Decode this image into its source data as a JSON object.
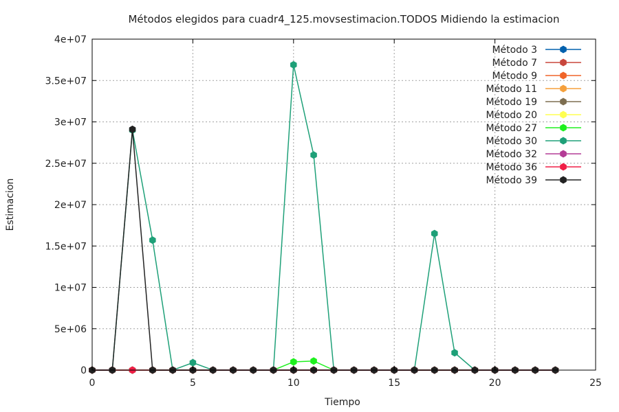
{
  "chart_data": {
    "type": "line",
    "title": "Métodos elegidos para cuadr4_125.movsestimacion.TODOS Midiendo la estimacion",
    "xlabel": "Tiempo",
    "ylabel": "Estimacion",
    "xlim": [
      0,
      25
    ],
    "ylim": [
      0,
      40000000
    ],
    "xticks": [
      0,
      5,
      10,
      15,
      20,
      25
    ],
    "xtick_labels": [
      "0",
      "5",
      "10",
      "15",
      "20",
      "25"
    ],
    "yticks": [
      0,
      5000000,
      10000000,
      15000000,
      20000000,
      25000000,
      30000000,
      35000000,
      40000000
    ],
    "ytick_labels": [
      "0",
      "5e+06",
      "1e+07",
      "1.5e+07",
      "2e+07",
      "2.5e+07",
      "3e+07",
      "3.5e+07",
      "4e+07"
    ],
    "grid": true,
    "legend_position": "top-right",
    "x": [
      0,
      1,
      2,
      3,
      4,
      5,
      6,
      7,
      8,
      9,
      10,
      11,
      12,
      13,
      14,
      15,
      16,
      17,
      18,
      19,
      20,
      21,
      22,
      23
    ],
    "series": [
      {
        "name": "Método 3",
        "color": "#0060ad",
        "values": [
          0,
          0,
          0,
          0,
          0,
          0,
          0,
          0,
          0,
          0,
          0,
          0,
          0,
          0,
          0,
          0,
          0,
          0,
          0,
          0,
          0,
          0,
          0,
          0
        ]
      },
      {
        "name": "Método 7",
        "color": "#c8463c",
        "values": [
          0,
          0,
          0,
          0,
          0,
          0,
          0,
          0,
          0,
          0,
          0,
          0,
          0,
          0,
          0,
          0,
          0,
          0,
          0,
          0,
          0,
          0,
          0,
          0
        ]
      },
      {
        "name": "Método 9",
        "color": "#f06428",
        "values": [
          0,
          0,
          0,
          0,
          0,
          0,
          0,
          0,
          0,
          0,
          0,
          0,
          0,
          0,
          0,
          0,
          0,
          0,
          0,
          0,
          0,
          0,
          0,
          0
        ]
      },
      {
        "name": "Método 11",
        "color": "#f5a03c",
        "values": [
          0,
          0,
          0,
          0,
          0,
          0,
          0,
          0,
          0,
          0,
          0,
          0,
          0,
          0,
          0,
          0,
          0,
          0,
          0,
          0,
          0,
          0,
          0,
          0
        ]
      },
      {
        "name": "Método 19",
        "color": "#7d6e50",
        "values": [
          0,
          0,
          0,
          0,
          0,
          0,
          0,
          0,
          0,
          0,
          0,
          0,
          0,
          0,
          0,
          0,
          0,
          0,
          0,
          0,
          0,
          0,
          0,
          0
        ]
      },
      {
        "name": "Método 20",
        "color": "#ffff50",
        "values": [
          0,
          0,
          0,
          0,
          0,
          0,
          0,
          0,
          0,
          0,
          0,
          0,
          0,
          0,
          0,
          0,
          0,
          0,
          0,
          0,
          0,
          0,
          0,
          0
        ]
      },
      {
        "name": "Método 27",
        "color": "#1ef01e",
        "values": [
          0,
          0,
          0,
          0,
          0,
          0,
          0,
          0,
          0,
          0,
          1000000,
          1100000,
          0,
          0,
          0,
          0,
          0,
          0,
          0,
          0,
          0,
          0,
          0,
          0
        ]
      },
      {
        "name": "Método 30",
        "color": "#1ea078",
        "values": [
          0,
          0,
          29000000,
          15700000,
          0,
          900000,
          0,
          0,
          0,
          0,
          36900000,
          26000000,
          0,
          0,
          0,
          0,
          0,
          16500000,
          2100000,
          0,
          0,
          0,
          0,
          0
        ]
      },
      {
        "name": "Método 32",
        "color": "#b43c96",
        "values": [
          0,
          0,
          0,
          0,
          0,
          0,
          0,
          0,
          0,
          0,
          0,
          0,
          0,
          0,
          0,
          0,
          0,
          0,
          0,
          0,
          0,
          0,
          0,
          0
        ]
      },
      {
        "name": "Método 36",
        "color": "#f01e46",
        "values": [
          0,
          0,
          0,
          0,
          0,
          0,
          0,
          0,
          0,
          0,
          0,
          0,
          0,
          0,
          0,
          0,
          0,
          0,
          0,
          0,
          0,
          0,
          0,
          0
        ]
      },
      {
        "name": "Método 39",
        "color": "#222222",
        "values": [
          0,
          0,
          29100000,
          0,
          0,
          0,
          0,
          0,
          0,
          0,
          0,
          0,
          0,
          0,
          0,
          0,
          0,
          0,
          0,
          0,
          0,
          0,
          0,
          0
        ]
      }
    ]
  }
}
